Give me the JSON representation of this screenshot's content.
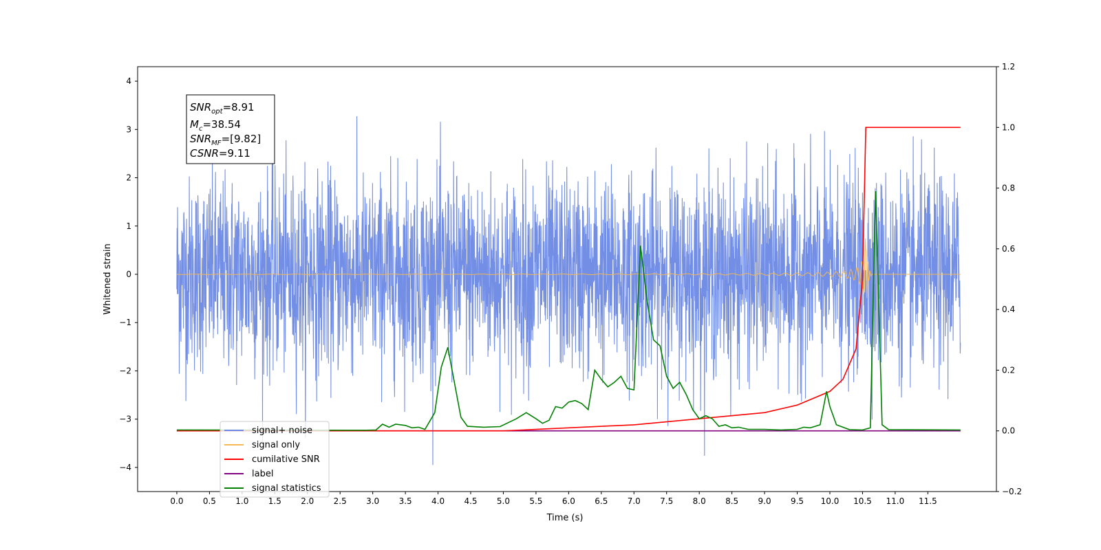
{
  "chart_data": {
    "type": "line",
    "xlabel": "Time (s)",
    "ylabel": "Whitened strain",
    "xlim": [
      -0.6,
      12.55
    ],
    "ylim": [
      -4.5,
      4.3
    ],
    "y2lim": [
      -0.2,
      1.2
    ],
    "x_ticks": [
      "0.0",
      "0.5",
      "1.0",
      "1.5",
      "2.0",
      "2.5",
      "3.0",
      "3.5",
      "4.0",
      "4.5",
      "5.0",
      "5.5",
      "6.0",
      "6.5",
      "7.0",
      "7.5",
      "8.0",
      "8.5",
      "9.0",
      "9.5",
      "10.0",
      "10.5",
      "11.0",
      "11.5"
    ],
    "y_ticks": [
      "4",
      "3",
      "2",
      "1",
      "0",
      "−1",
      "−2",
      "−3",
      "−4"
    ],
    "y2_ticks": [
      "1.2",
      "1.0",
      "0.8",
      "0.6",
      "0.4",
      "0.2",
      "0.0",
      "−0.2"
    ],
    "annotation": {
      "snr_opt": {
        "sym": "SNR",
        "sub": "opt",
        "val": "=8.91"
      },
      "mc": {
        "sym": "M",
        "sub": "c",
        "val": "=38.54"
      },
      "snr_mf": {
        "sym": "SNR",
        "sub": "MF",
        "val": "=[9.82]"
      },
      "csnr": {
        "sym": "CSNR",
        "val": "=9.11"
      }
    },
    "series": [
      {
        "name": "signal+ noise",
        "color": "#6b88e4",
        "axis": "left",
        "noise_std": 1.0,
        "x_range": [
          0,
          12.0
        ]
      },
      {
        "name": "signal only",
        "color": "#f5b853",
        "axis": "left",
        "merger_time": 10.55,
        "peak_amplitude": 0.9
      },
      {
        "name": "cumilative SNR",
        "color": "#ff0000",
        "axis": "right",
        "points": [
          [
            0,
            0
          ],
          [
            5,
            0
          ],
          [
            6,
            0.01
          ],
          [
            7,
            0.02
          ],
          [
            8,
            0.04
          ],
          [
            9,
            0.06
          ],
          [
            9.5,
            0.085
          ],
          [
            10,
            0.13
          ],
          [
            10.2,
            0.17
          ],
          [
            10.4,
            0.27
          ],
          [
            10.5,
            0.5
          ],
          [
            10.55,
            1.0
          ],
          [
            12.0,
            1.0
          ]
        ]
      },
      {
        "name": "label",
        "color": "#800080",
        "axis": "right",
        "points": [
          [
            0,
            0
          ],
          [
            12.0,
            0
          ]
        ]
      },
      {
        "name": "signal statistics",
        "color": "#008000",
        "axis": "right",
        "points": [
          [
            0,
            0.003
          ],
          [
            2.9,
            0.002
          ],
          [
            3.05,
            0.003
          ],
          [
            3.15,
            0.022
          ],
          [
            3.25,
            0.012
          ],
          [
            3.35,
            0.022
          ],
          [
            3.5,
            0.018
          ],
          [
            3.6,
            0.01
          ],
          [
            3.7,
            0.012
          ],
          [
            3.8,
            0.005
          ],
          [
            3.95,
            0.06
          ],
          [
            4.05,
            0.21
          ],
          [
            4.15,
            0.275
          ],
          [
            4.25,
            0.16
          ],
          [
            4.35,
            0.045
          ],
          [
            4.45,
            0.015
          ],
          [
            4.7,
            0.012
          ],
          [
            4.95,
            0.014
          ],
          [
            5.2,
            0.04
          ],
          [
            5.35,
            0.06
          ],
          [
            5.5,
            0.04
          ],
          [
            5.6,
            0.025
          ],
          [
            5.7,
            0.035
          ],
          [
            5.8,
            0.08
          ],
          [
            5.9,
            0.075
          ],
          [
            6.0,
            0.095
          ],
          [
            6.1,
            0.1
          ],
          [
            6.2,
            0.09
          ],
          [
            6.3,
            0.07
          ],
          [
            6.4,
            0.2
          ],
          [
            6.5,
            0.17
          ],
          [
            6.6,
            0.145
          ],
          [
            6.7,
            0.16
          ],
          [
            6.8,
            0.18
          ],
          [
            6.9,
            0.14
          ],
          [
            7.0,
            0.135
          ],
          [
            7.1,
            0.61
          ],
          [
            7.2,
            0.43
          ],
          [
            7.3,
            0.3
          ],
          [
            7.4,
            0.28
          ],
          [
            7.5,
            0.18
          ],
          [
            7.6,
            0.14
          ],
          [
            7.7,
            0.16
          ],
          [
            7.8,
            0.12
          ],
          [
            7.9,
            0.07
          ],
          [
            8.0,
            0.04
          ],
          [
            8.1,
            0.05
          ],
          [
            8.2,
            0.04
          ],
          [
            8.3,
            0.015
          ],
          [
            8.4,
            0.02
          ],
          [
            8.5,
            0.01
          ],
          [
            8.6,
            0.012
          ],
          [
            8.75,
            0.005
          ],
          [
            9.0,
            0.005
          ],
          [
            9.25,
            0.003
          ],
          [
            9.5,
            0.005
          ],
          [
            9.6,
            0.012
          ],
          [
            9.7,
            0.01
          ],
          [
            9.85,
            0.02
          ],
          [
            9.95,
            0.13
          ],
          [
            10.0,
            0.08
          ],
          [
            10.1,
            0.02
          ],
          [
            10.3,
            0.004
          ],
          [
            10.5,
            0.003
          ],
          [
            10.62,
            0.01
          ],
          [
            10.7,
            0.79
          ],
          [
            10.8,
            0.02
          ],
          [
            10.9,
            0.004
          ],
          [
            12.0,
            0.003
          ]
        ]
      }
    ],
    "legend_position": "lower-left"
  }
}
